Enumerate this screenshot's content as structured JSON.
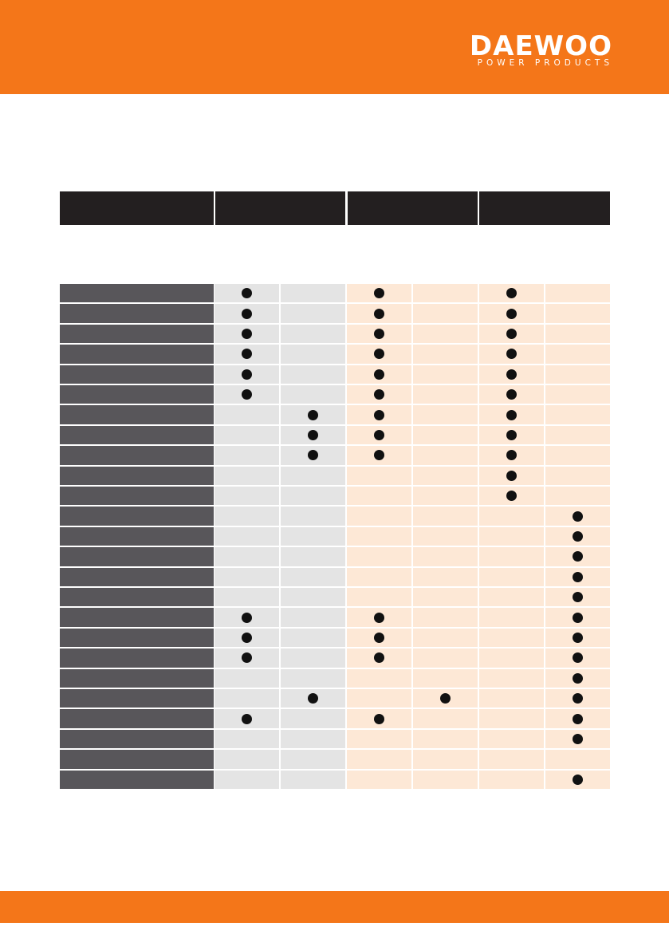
{
  "header": {
    "logo": "DAEWOO",
    "tagline": "POWER PRODUCTS"
  },
  "table": {
    "rows": [
      [
        true,
        false,
        true,
        false,
        true,
        false
      ],
      [
        true,
        false,
        true,
        false,
        true,
        false
      ],
      [
        true,
        false,
        true,
        false,
        true,
        false
      ],
      [
        true,
        false,
        true,
        false,
        true,
        false
      ],
      [
        true,
        false,
        true,
        false,
        true,
        false
      ],
      [
        true,
        false,
        true,
        false,
        true,
        false
      ],
      [
        false,
        true,
        true,
        false,
        true,
        false
      ],
      [
        false,
        true,
        true,
        false,
        true,
        false
      ],
      [
        false,
        true,
        true,
        false,
        true,
        false
      ],
      [
        false,
        false,
        false,
        false,
        true,
        false
      ],
      [
        false,
        false,
        false,
        false,
        true,
        false
      ],
      [
        false,
        false,
        false,
        false,
        false,
        true
      ],
      [
        false,
        false,
        false,
        false,
        false,
        true
      ],
      [
        false,
        false,
        false,
        false,
        false,
        true
      ],
      [
        false,
        false,
        false,
        false,
        false,
        true
      ],
      [
        false,
        false,
        false,
        false,
        false,
        true
      ],
      [
        true,
        false,
        true,
        false,
        false,
        true
      ],
      [
        true,
        false,
        true,
        false,
        false,
        true
      ],
      [
        true,
        false,
        true,
        false,
        false,
        true
      ],
      [
        false,
        false,
        false,
        false,
        false,
        true
      ],
      [
        false,
        true,
        false,
        true,
        false,
        true
      ],
      [
        true,
        false,
        true,
        false,
        false,
        true
      ],
      [
        false,
        false,
        false,
        false,
        false,
        true
      ],
      [
        false,
        false,
        false,
        false,
        false,
        false
      ],
      [
        false,
        false,
        false,
        false,
        false,
        true
      ]
    ]
  }
}
